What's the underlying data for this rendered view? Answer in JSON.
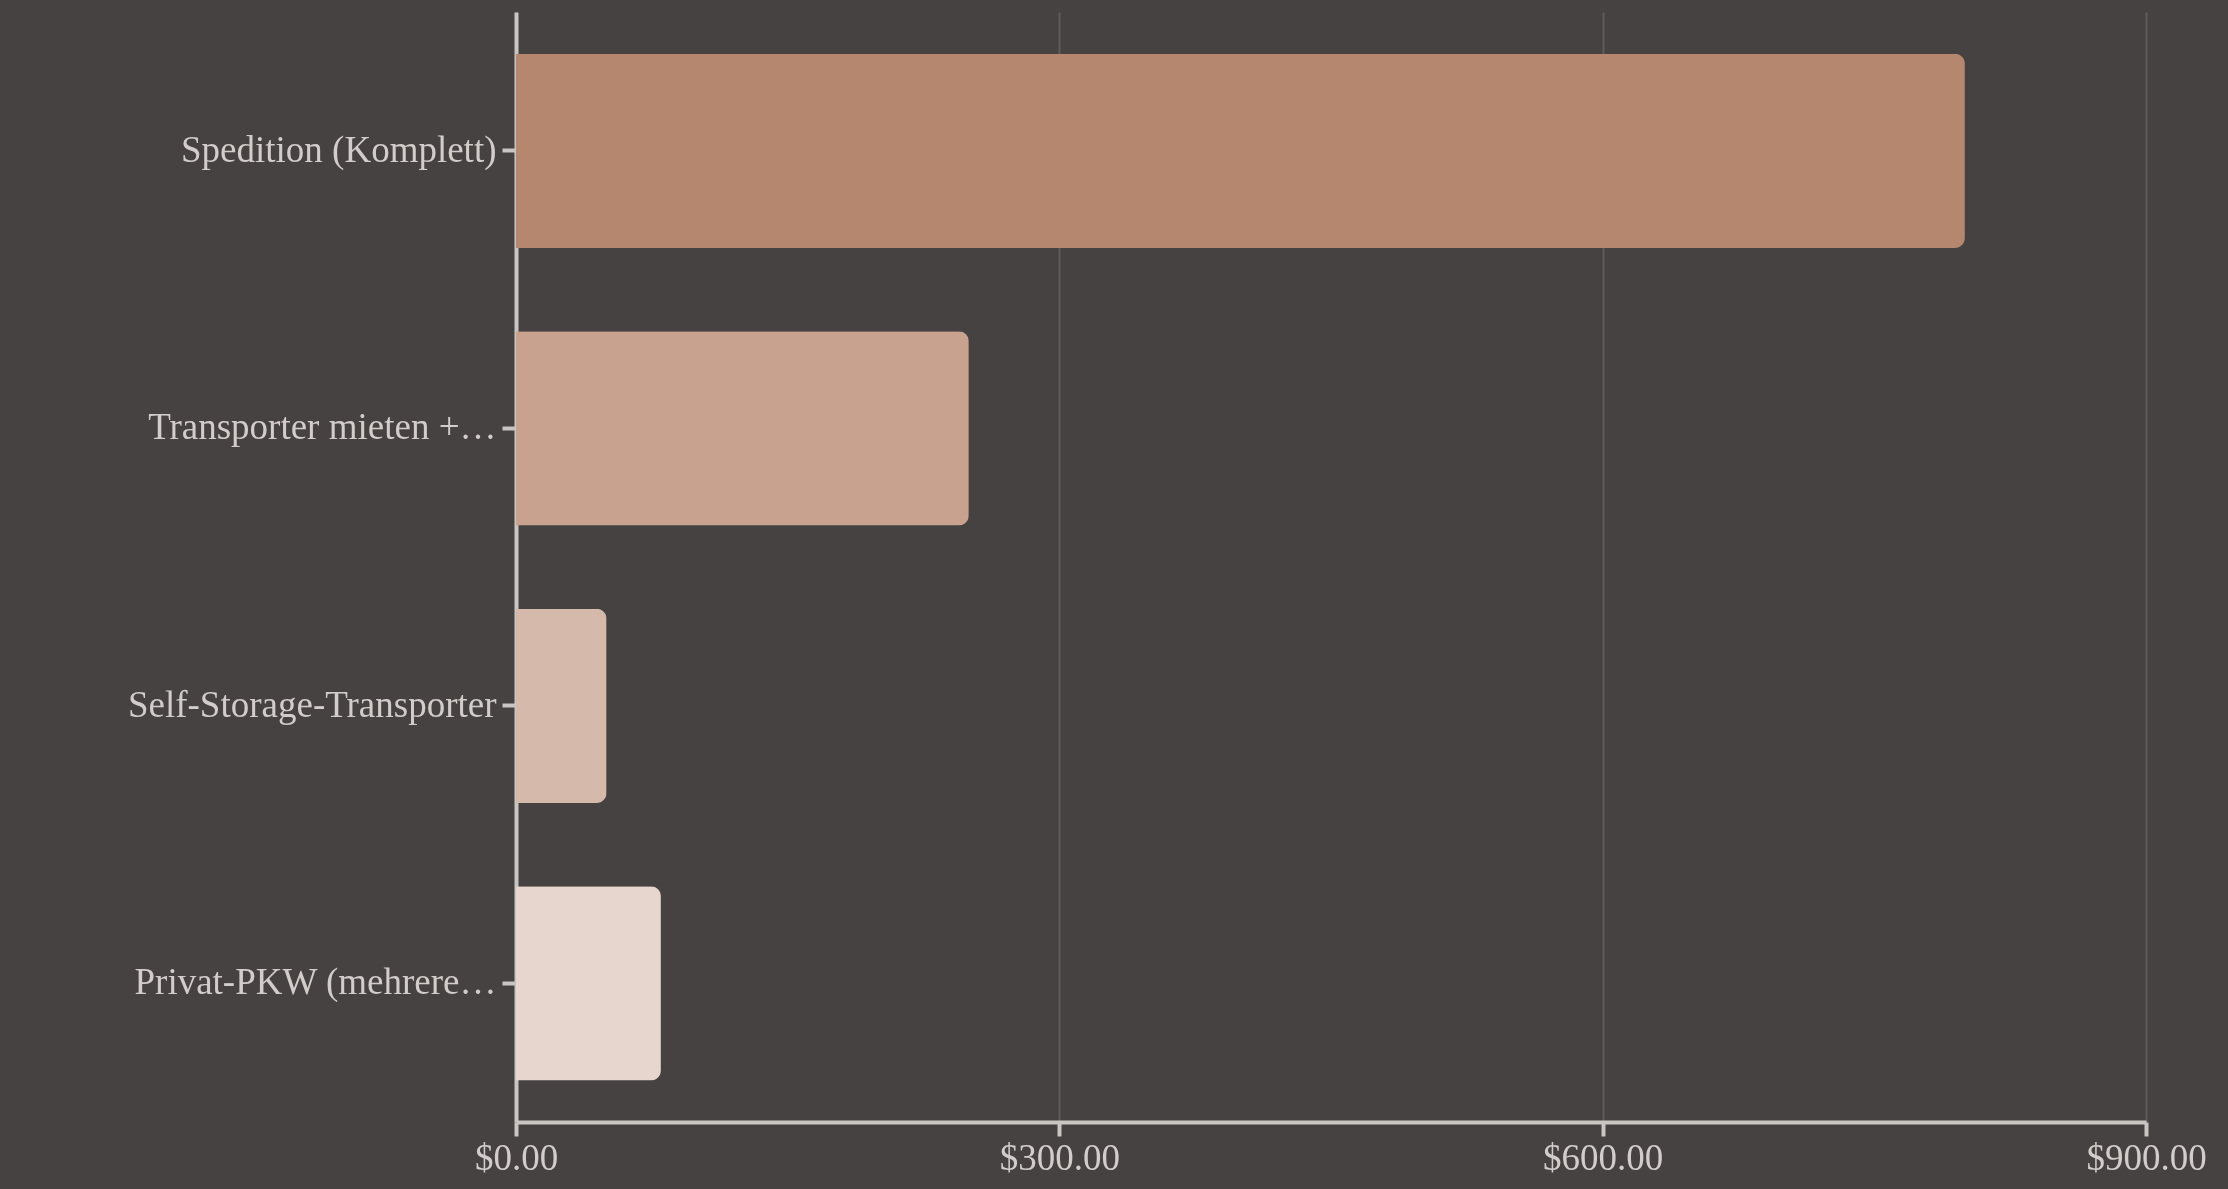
{
  "chart_data": {
    "type": "bar",
    "orientation": "horizontal",
    "categories": [
      "Spedition (Komplett)",
      "Transporter mieten +…",
      "Self-Storage-Transporter",
      "Privat-PKW (mehrere…"
    ],
    "values": [
      800,
      250,
      50,
      80
    ],
    "colors": [
      "#b5876f",
      "#c8a28e",
      "#d5b9ab",
      "#e6d6cd"
    ],
    "xlim": [
      0,
      900
    ],
    "xticks": [
      {
        "value": 0,
        "label": "$0.00"
      },
      {
        "value": 300,
        "label": "$300.00"
      },
      {
        "value": 600,
        "label": "$600.00"
      },
      {
        "value": 900,
        "label": "$900.00"
      }
    ],
    "grid": "x"
  }
}
